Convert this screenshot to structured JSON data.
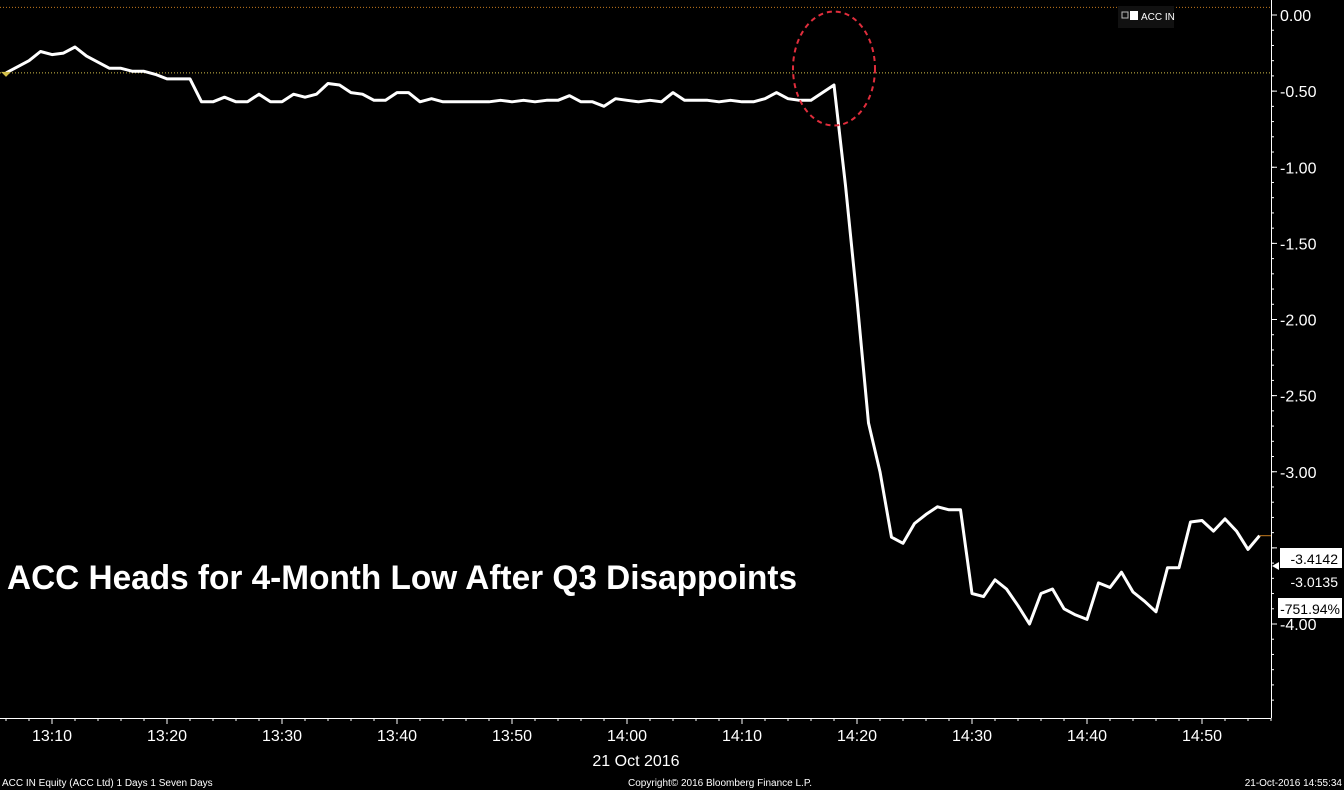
{
  "chart_data": {
    "type": "line",
    "title": "ACC Heads for 4-Month Low After Q3 Disappoints",
    "date_label": "21 Oct 2016",
    "legend": {
      "label": "ACC IN",
      "color": "#ffffff",
      "placement": "top-right"
    },
    "ylim": [
      -4.5,
      0.0
    ],
    "y_ticks": [
      {
        "value": 0.0,
        "label": "0.00"
      },
      {
        "value": -0.5,
        "label": "-0.50"
      },
      {
        "value": -1.0,
        "label": "-1.00"
      },
      {
        "value": -1.5,
        "label": "-1.50"
      },
      {
        "value": -2.0,
        "label": "-2.00"
      },
      {
        "value": -2.5,
        "label": "-2.50"
      },
      {
        "value": -3.0,
        "label": "-3.00"
      },
      {
        "value": -3.5,
        "label": ""
      },
      {
        "value": -4.0,
        "label": "-4.00"
      }
    ],
    "xlim": [
      "13:06",
      "14:57"
    ],
    "x_ticks": [
      "13:10",
      "13:20",
      "13:30",
      "13:40",
      "13:50",
      "14:00",
      "14:10",
      "14:20",
      "14:30",
      "14:40",
      "14:50"
    ],
    "reference_line": {
      "value": -0.38,
      "color": "#d4c04a",
      "style": "dotted"
    },
    "top_line": {
      "value": 0.05,
      "color": "#c47a1e",
      "style": "dotted"
    },
    "highlight": {
      "x": "14:18",
      "y": -0.45,
      "color": "#e02d3c",
      "style": "dashed-ellipse"
    },
    "value_labels": [
      {
        "text": "-3.4142",
        "bg": "#ffffff",
        "color": "#000000"
      },
      {
        "text": "-3.0135",
        "bg": "#000000",
        "color": "#ffffff"
      },
      {
        "text": "-751.94%",
        "bg": "#ffffff",
        "color": "#000000"
      }
    ],
    "series": [
      {
        "name": "ACC IN",
        "color": "#ffffff",
        "points": [
          {
            "x": "13:06",
            "y": -0.38
          },
          {
            "x": "13:08",
            "y": -0.3
          },
          {
            "x": "13:09",
            "y": -0.24
          },
          {
            "x": "13:10",
            "y": -0.26
          },
          {
            "x": "13:11",
            "y": -0.25
          },
          {
            "x": "13:12",
            "y": -0.21
          },
          {
            "x": "13:13",
            "y": -0.27
          },
          {
            "x": "13:14",
            "y": -0.31
          },
          {
            "x": "13:15",
            "y": -0.35
          },
          {
            "x": "13:16",
            "y": -0.35
          },
          {
            "x": "13:17",
            "y": -0.37
          },
          {
            "x": "13:18",
            "y": -0.37
          },
          {
            "x": "13:19",
            "y": -0.39
          },
          {
            "x": "13:20",
            "y": -0.42
          },
          {
            "x": "13:21",
            "y": -0.42
          },
          {
            "x": "13:22",
            "y": -0.42
          },
          {
            "x": "13:23",
            "y": -0.57
          },
          {
            "x": "13:24",
            "y": -0.57
          },
          {
            "x": "13:25",
            "y": -0.54
          },
          {
            "x": "13:26",
            "y": -0.57
          },
          {
            "x": "13:27",
            "y": -0.57
          },
          {
            "x": "13:28",
            "y": -0.52
          },
          {
            "x": "13:29",
            "y": -0.57
          },
          {
            "x": "13:30",
            "y": -0.57
          },
          {
            "x": "13:31",
            "y": -0.52
          },
          {
            "x": "13:32",
            "y": -0.54
          },
          {
            "x": "13:33",
            "y": -0.52
          },
          {
            "x": "13:34",
            "y": -0.45
          },
          {
            "x": "13:35",
            "y": -0.46
          },
          {
            "x": "13:36",
            "y": -0.51
          },
          {
            "x": "13:37",
            "y": -0.52
          },
          {
            "x": "13:38",
            "y": -0.56
          },
          {
            "x": "13:39",
            "y": -0.56
          },
          {
            "x": "13:40",
            "y": -0.51
          },
          {
            "x": "13:41",
            "y": -0.51
          },
          {
            "x": "13:42",
            "y": -0.57
          },
          {
            "x": "13:43",
            "y": -0.55
          },
          {
            "x": "13:44",
            "y": -0.57
          },
          {
            "x": "13:45",
            "y": -0.57
          },
          {
            "x": "13:46",
            "y": -0.57
          },
          {
            "x": "13:48",
            "y": -0.57
          },
          {
            "x": "13:49",
            "y": -0.56
          },
          {
            "x": "13:50",
            "y": -0.57
          },
          {
            "x": "13:51",
            "y": -0.56
          },
          {
            "x": "13:52",
            "y": -0.57
          },
          {
            "x": "13:53",
            "y": -0.56
          },
          {
            "x": "13:54",
            "y": -0.56
          },
          {
            "x": "13:55",
            "y": -0.53
          },
          {
            "x": "13:56",
            "y": -0.57
          },
          {
            "x": "13:57",
            "y": -0.57
          },
          {
            "x": "13:58",
            "y": -0.6
          },
          {
            "x": "13:59",
            "y": -0.55
          },
          {
            "x": "14:00",
            "y": -0.56
          },
          {
            "x": "14:01",
            "y": -0.57
          },
          {
            "x": "14:02",
            "y": -0.56
          },
          {
            "x": "14:03",
            "y": -0.57
          },
          {
            "x": "14:04",
            "y": -0.51
          },
          {
            "x": "14:05",
            "y": -0.56
          },
          {
            "x": "14:06",
            "y": -0.56
          },
          {
            "x": "14:07",
            "y": -0.56
          },
          {
            "x": "14:08",
            "y": -0.57
          },
          {
            "x": "14:09",
            "y": -0.56
          },
          {
            "x": "14:10",
            "y": -0.57
          },
          {
            "x": "14:11",
            "y": -0.57
          },
          {
            "x": "14:12",
            "y": -0.55
          },
          {
            "x": "14:13",
            "y": -0.51
          },
          {
            "x": "14:14",
            "y": -0.55
          },
          {
            "x": "14:15",
            "y": -0.56
          },
          {
            "x": "14:16",
            "y": -0.56
          },
          {
            "x": "14:18",
            "y": -0.46
          },
          {
            "x": "14:19",
            "y": -1.12
          },
          {
            "x": "14:20",
            "y": -1.87
          },
          {
            "x": "14:21",
            "y": -2.68
          },
          {
            "x": "14:22",
            "y": -3.0
          },
          {
            "x": "14:23",
            "y": -3.43
          },
          {
            "x": "14:24",
            "y": -3.47
          },
          {
            "x": "14:25",
            "y": -3.34
          },
          {
            "x": "14:26",
            "y": -3.28
          },
          {
            "x": "14:27",
            "y": -3.23
          },
          {
            "x": "14:28",
            "y": -3.25
          },
          {
            "x": "14:29",
            "y": -3.25
          },
          {
            "x": "14:30",
            "y": -3.8
          },
          {
            "x": "14:31",
            "y": -3.82
          },
          {
            "x": "14:32",
            "y": -3.71
          },
          {
            "x": "14:33",
            "y": -3.77
          },
          {
            "x": "14:34",
            "y": -3.88
          },
          {
            "x": "14:35",
            "y": -4.0
          },
          {
            "x": "14:36",
            "y": -3.8
          },
          {
            "x": "14:37",
            "y": -3.77
          },
          {
            "x": "14:38",
            "y": -3.9
          },
          {
            "x": "14:39",
            "y": -3.94
          },
          {
            "x": "14:40",
            "y": -3.97
          },
          {
            "x": "14:41",
            "y": -3.73
          },
          {
            "x": "14:42",
            "y": -3.76
          },
          {
            "x": "14:43",
            "y": -3.66
          },
          {
            "x": "14:44",
            "y": -3.79
          },
          {
            "x": "14:45",
            "y": -3.85
          },
          {
            "x": "14:46",
            "y": -3.92
          },
          {
            "x": "14:47",
            "y": -3.63
          },
          {
            "x": "14:48",
            "y": -3.63
          },
          {
            "x": "14:49",
            "y": -3.33
          },
          {
            "x": "14:50",
            "y": -3.32
          },
          {
            "x": "14:51",
            "y": -3.39
          },
          {
            "x": "14:52",
            "y": -3.31
          },
          {
            "x": "14:53",
            "y": -3.39
          },
          {
            "x": "14:54",
            "y": -3.51
          },
          {
            "x": "14:55",
            "y": -3.42
          }
        ]
      }
    ]
  },
  "footer": {
    "left": "ACC IN Equity (ACC Ltd) 1 Days 1 Seven Days",
    "center": "Copyright© 2016 Bloomberg Finance L.P.",
    "right": "21-Oct-2016 14:55:34"
  }
}
